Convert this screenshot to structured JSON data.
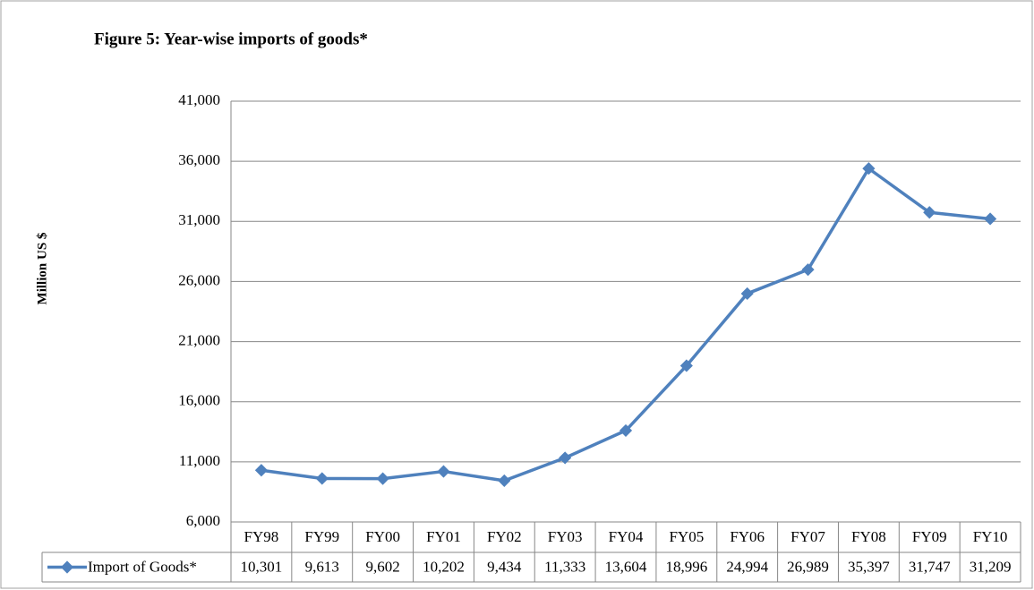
{
  "chart_data": {
    "type": "line",
    "title": "Figure 5: Year-wise imports of goods*",
    "y_label": "Million US $",
    "categories": [
      "FY98",
      "FY99",
      "FY00",
      "FY01",
      "FY02",
      "FY03",
      "FY04",
      "FY05",
      "FY06",
      "FY07",
      "FY08",
      "FY09",
      "FY10"
    ],
    "series": [
      {
        "name": "Import of Goods*",
        "color": "#4f81bd",
        "values": [
          10301,
          9613,
          9602,
          10202,
          9434,
          11333,
          13604,
          18996,
          24994,
          26989,
          35397,
          31747,
          31209
        ],
        "value_labels": [
          "10,301",
          "9,613",
          "9,602",
          "10,202",
          "9,434",
          "11,333",
          "13,604",
          "18,996",
          "24,994",
          "26,989",
          "35,397",
          "31,747",
          "31,209"
        ]
      }
    ],
    "ylim": [
      6000,
      41000
    ],
    "yticks": [
      {
        "value": 6000,
        "label": "6,000"
      },
      {
        "value": 11000,
        "label": "11,000"
      },
      {
        "value": 16000,
        "label": "16,000"
      },
      {
        "value": 21000,
        "label": "21,000"
      },
      {
        "value": 26000,
        "label": "26,000"
      },
      {
        "value": 31000,
        "label": "31,000"
      },
      {
        "value": 36000,
        "label": "36,000"
      },
      {
        "value": 41000,
        "label": "41,000"
      }
    ],
    "grid": true
  }
}
